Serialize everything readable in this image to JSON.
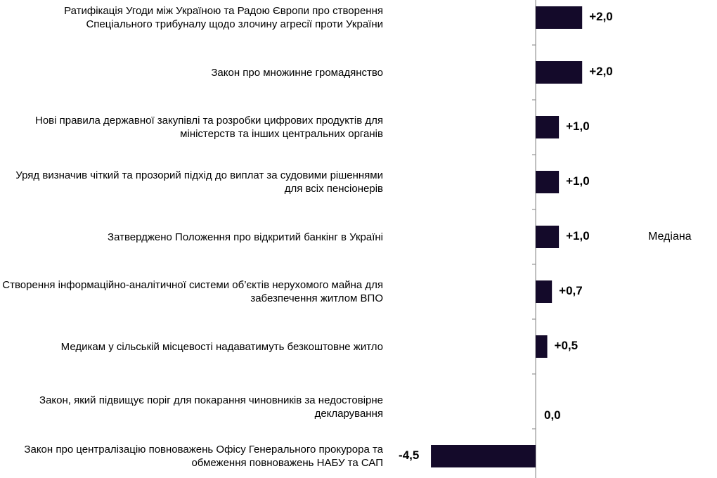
{
  "chart_data": {
    "type": "bar",
    "orientation": "horizontal",
    "categories": [
      "Ратифікація Угоди між Україною та Радою Європи про створення Спеціального трибуналу щодо злочину агресії проти України",
      "Закон про множинне громадянство",
      "Нові правила державної закупівлі та розробки цифрових продуктів для міністерств та інших центральних органів",
      "Уряд визначив чіткий та прозорий підхід до виплат за судовими рішеннями для всіх пенсіонерів",
      "Затверджено Положення про відкритий банкінг в Україні",
      "Створення інформаційно-аналітичної системи об’єктів нерухомого майна для забезпечення житлом ВПО",
      "Медикам у сільській місцевості надаватимуть безкоштовне житло",
      "Закон, який підвищує поріг для покарання чиновників за недостовірне декларування",
      "Закон про централізацію повноважень Офісу Генерального прокурора та обмеження повноважень НАБУ та САП"
    ],
    "series": [
      {
        "name": "Медіана",
        "values": [
          2.0,
          2.0,
          1.0,
          1.0,
          1.0,
          0.7,
          0.5,
          0.0,
          -4.5
        ],
        "labels": [
          "+2,0",
          "+2,0",
          "+1,0",
          "+1,0",
          "+1,0",
          "+0,7",
          "+0,5",
          "0,0",
          "-4,5"
        ]
      }
    ],
    "xlim": [
      -4.5,
      2.0
    ],
    "bar_color": "#140a2a",
    "axis_color": "#808080",
    "grid": false,
    "legend_position": "right"
  }
}
